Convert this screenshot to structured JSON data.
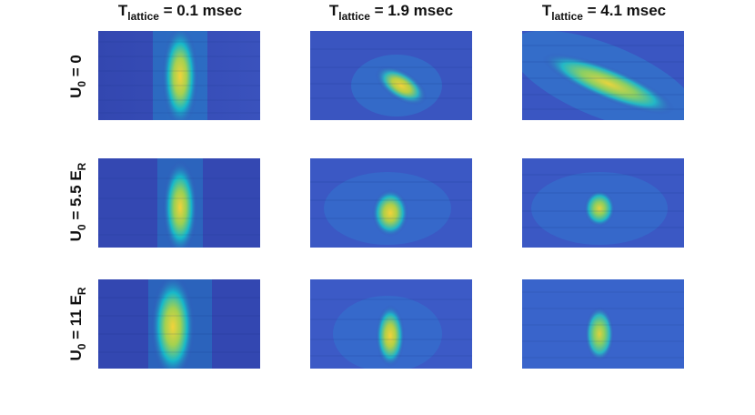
{
  "columns": [
    {
      "main": "T",
      "sub": "lattice",
      "rest": " = 0.1 msec"
    },
    {
      "main": "T",
      "sub": "lattice",
      "rest": " = 1.9 msec"
    },
    {
      "main": "T",
      "sub": "lattice",
      "rest": " = 4.1 msec"
    }
  ],
  "rows": [
    {
      "main": "U",
      "sub": "0",
      "rest": " = 0"
    },
    {
      "main": "U",
      "sub": "0",
      "rest": " = 5.5 E",
      "sub2": "R"
    },
    {
      "main": "U",
      "sub": "0",
      "rest": " = 11 E",
      "sub2": "R"
    }
  ],
  "colors": {
    "background_blue": "#3a4fb8",
    "mid_cyan": "#17b8c9",
    "peak_yellow": "#f2d23a"
  }
}
